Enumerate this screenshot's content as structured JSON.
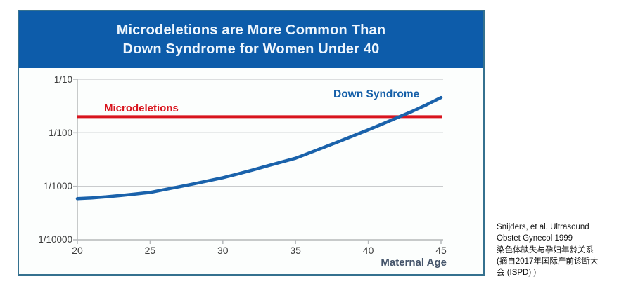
{
  "header": {
    "title_line1": "Microdeletions are More Common Than",
    "title_line2": "Down Syndrome for Women Under 40"
  },
  "chart_data": {
    "type": "line",
    "title": "Microdeletions are More Common Than Down Syndrome for Women Under 40",
    "xlabel": "Maternal Age",
    "ylabel": "",
    "y_scale": "log",
    "grid": true,
    "x_range": [
      20,
      45
    ],
    "y_range": [
      0.0001,
      0.1
    ],
    "x_ticks": [
      20,
      25,
      30,
      35,
      40,
      45
    ],
    "y_ticks": [
      {
        "label": "1/10",
        "value": 0.1
      },
      {
        "label": "1/100",
        "value": 0.01
      },
      {
        "label": "1/1000",
        "value": 0.001
      },
      {
        "label": "1/10000",
        "value": 0.0001
      }
    ],
    "legend_position": "inline-labels",
    "series": [
      {
        "name": "Microdeletions",
        "type": "constant_line",
        "color": "#d9151e",
        "value": 0.02,
        "value_label": "~1/50"
      },
      {
        "name": "Down Syndrome",
        "type": "curve",
        "color": "#1a62ab",
        "ages": [
          20,
          21,
          22,
          23,
          24,
          25,
          26,
          27,
          28,
          29,
          30,
          31,
          32,
          33,
          34,
          35,
          36,
          37,
          38,
          39,
          40,
          41,
          42,
          43,
          44,
          45
        ],
        "risk_denominators": [
          1700,
          1650,
          1570,
          1480,
          1390,
          1300,
          1150,
          1020,
          900,
          790,
          690,
          590,
          500,
          420,
          355,
          300,
          235,
          185,
          145,
          113,
          88,
          68,
          52,
          40,
          30,
          22
        ],
        "risk_encoding": "risk = 1/denominator (estimated from plot)"
      }
    ]
  },
  "citation": {
    "lines": [
      "Snijders, et al. Ultrasound",
      "Obstet Gynecol 1999",
      "染色体缺失与孕妇年龄关系",
      "(摘自2017年国际产前诊断大",
      "会 (ISPD) )"
    ]
  },
  "colors": {
    "banner_bg": "#0d5caa",
    "panel_border": "#35718f",
    "microdeletions_red": "#d9151e",
    "down_syndrome_blue": "#1a62ab",
    "gridline": "#c9cbcd",
    "axis": "#b5b8ba",
    "tick_text": "#3d3d3d",
    "axis_label_text": "#44546a",
    "title_text": "#eef6fd"
  }
}
